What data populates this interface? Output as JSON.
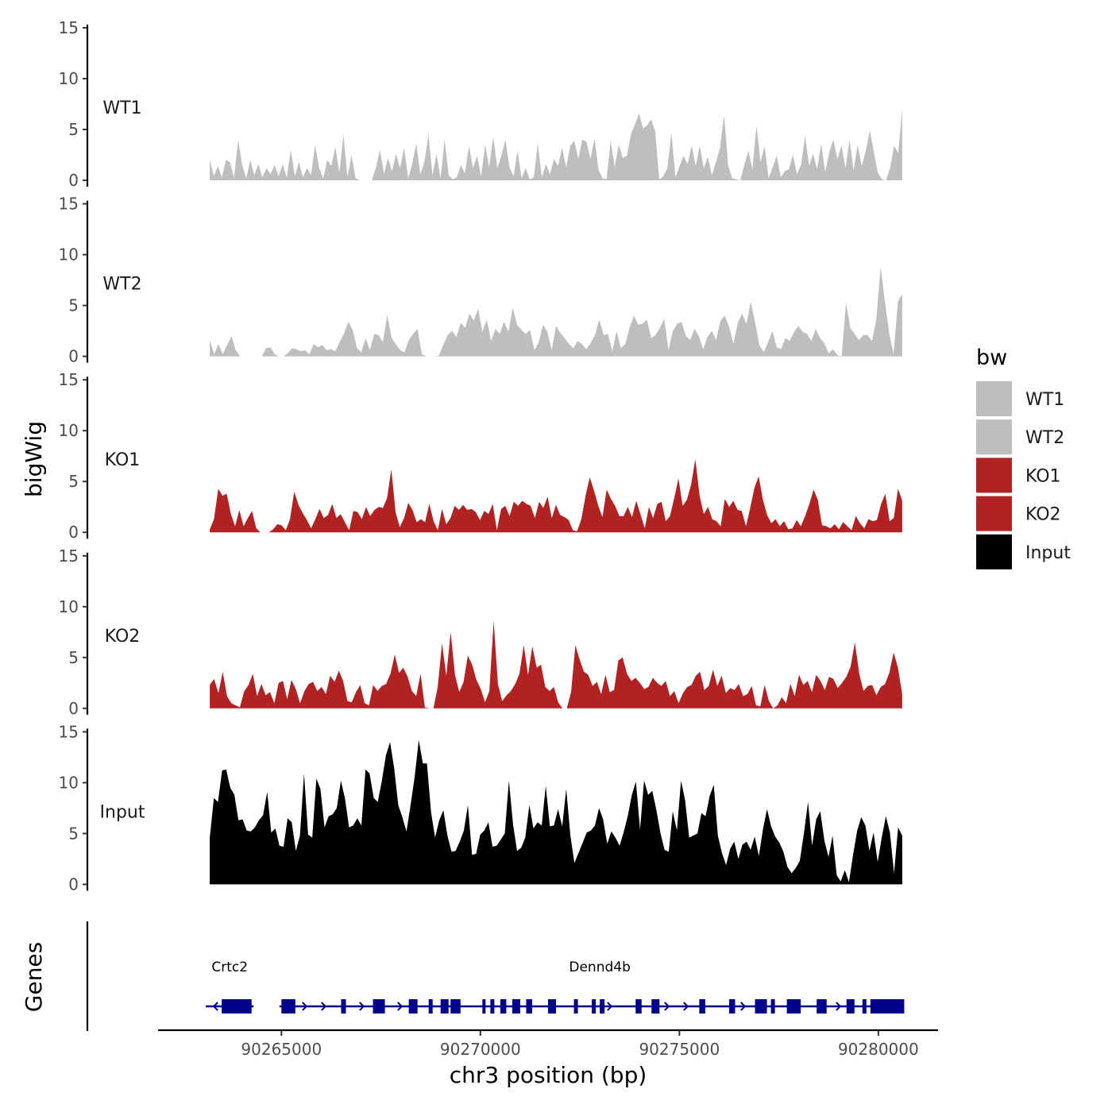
{
  "chart_data": {
    "type": "area",
    "title": "",
    "xlabel": "chr3 position (bp)",
    "ylabel": "bigWig",
    "genes_panel_label": "Genes",
    "xlim": [
      90261900,
      90281500
    ],
    "x_range": [
      90263200,
      90280600
    ],
    "x_ticks": [
      90265000,
      90270000,
      90275000,
      90280000
    ],
    "x_tick_labels": [
      "90265000",
      "90270000",
      "90275000",
      "90280000"
    ],
    "ylim": [
      0,
      15
    ],
    "y_ticks": [
      0,
      5,
      10,
      15
    ],
    "y_tick_labels": [
      "0",
      "5",
      "10",
      "15"
    ],
    "legend": {
      "title": "bw",
      "position": "right"
    },
    "series": [
      {
        "name": "WT1",
        "color": "#bebebe",
        "values": [
          2,
          0.4,
          1.4,
          0.3,
          2,
          1.8,
          0.2,
          4,
          1.5,
          0.2,
          2,
          0.5,
          1.6,
          0.3,
          1.2,
          0.6,
          1.5,
          0.4,
          1.6,
          0.3,
          3,
          0.4,
          1.8,
          0.3,
          1.2,
          0.5,
          3.5,
          1.2,
          0.2,
          2,
          1.4,
          3.3,
          0.7,
          4.5,
          0.3,
          2.5,
          0.2,
          0,
          0,
          0,
          0,
          1.2,
          3,
          0.6,
          2.2,
          0.9,
          2.6,
          1.2,
          3.2,
          0.2,
          1.6,
          3.6,
          0.6,
          1.8,
          4.5,
          0.5,
          2.6,
          0.2,
          4,
          0.5,
          0.1,
          0.3,
          1.5,
          0.7,
          3.4,
          1.2,
          2.4,
          0.4,
          3.5,
          1.3,
          4.3,
          1.2,
          2.4,
          4,
          1.3,
          0.4,
          2.9,
          0.2,
          1.2,
          0.1,
          0.3,
          3.6,
          0.3,
          1.6,
          0.6,
          2.1,
          1.4,
          3.2,
          1.3,
          3.4,
          3.9,
          2.1,
          4,
          3.8,
          2.1,
          4.1,
          1,
          0.2,
          0.1,
          3.9,
          1.3,
          3.5,
          2.2,
          2.4,
          4.5,
          5.5,
          6.6,
          5.1,
          5.4,
          6,
          4.8,
          0.1,
          0.4,
          1.2,
          4.7,
          0.3,
          1.4,
          2.4,
          1.6,
          3.4,
          1.4,
          3.4,
          1.2,
          2.3,
          0.5,
          1.8,
          3.2,
          6.4,
          1.5,
          0.2,
          0.1,
          0,
          1.5,
          2.9,
          1.1,
          5.4,
          1.8,
          3.4,
          0.2,
          1.3,
          2.4,
          0.3,
          0.9,
          1.1,
          2.5,
          0.6,
          1.5,
          4.4,
          1.4,
          2.6,
          1.1,
          3.6,
          0.8,
          2.8,
          4,
          2.1,
          3.4,
          1.2,
          4,
          1,
          3.5,
          1.4,
          2.9,
          4.9,
          2.8,
          0.7,
          0.1,
          0,
          1.2,
          3.4,
          2.7,
          7
        ]
      },
      {
        "name": "WT2",
        "color": "#bebebe",
        "values": [
          1.6,
          0.2,
          1.2,
          0.2,
          1.1,
          2,
          0.6,
          0,
          0,
          0,
          0,
          0,
          0,
          0.8,
          0.9,
          0.2,
          0,
          0,
          0.3,
          0.8,
          0.7,
          0.5,
          0.6,
          0.2,
          1.2,
          0.9,
          1.1,
          0.6,
          0.7,
          0.5,
          1.4,
          2.2,
          3.4,
          2.6,
          0.8,
          0.4,
          1.8,
          0.6,
          2.2,
          2.1,
          1.4,
          4.1,
          1.8,
          1.2,
          0.6,
          0.4,
          1.6,
          2.2,
          2.7,
          0.2,
          0,
          0,
          0,
          0.1,
          1.2,
          2.1,
          2.5,
          1.9,
          3.3,
          2.8,
          4.2,
          3.5,
          4.7,
          2.4,
          3.6,
          1.5,
          2.7,
          2.2,
          3.4,
          2.4,
          4.8,
          3.1,
          2.6,
          2.2,
          2.6,
          0.6,
          1.4,
          3.1,
          2.4,
          0.6,
          3,
          2.3,
          1.8,
          1.2,
          0.8,
          1.5,
          1.2,
          0.7,
          1.3,
          2.1,
          3.6,
          2.1,
          2.2,
          0.5,
          2.5,
          0.8,
          1.2,
          2.8,
          4,
          3.1,
          3.2,
          3.6,
          1.8,
          2.1,
          2.8,
          3.7,
          0.6,
          2.5,
          3.2,
          3.4,
          2,
          1.6,
          2.7,
          2,
          0.7,
          1.9,
          2.5,
          1.6,
          3.5,
          4,
          2.9,
          1.2,
          3.3,
          4.2,
          3.2,
          5.4,
          3.3,
          1.1,
          0.4,
          1.4,
          2.5,
          0.9,
          0.7,
          1.8,
          1.5,
          2.4,
          3,
          2.4,
          2.2,
          1.5,
          2.7,
          1.8,
          1.3,
          0.3,
          0.7,
          0.1,
          0,
          5.3,
          2.8,
          2.2,
          1.6,
          2.1,
          2.1,
          1.5,
          3.6,
          8.8,
          5.4,
          2.2,
          0.2,
          5.4,
          6.1
        ]
      },
      {
        "name": "KO1",
        "color": "#b22222",
        "values": [
          0.3,
          1.3,
          4.3,
          3.6,
          3.8,
          1.8,
          0.6,
          2.2,
          0.6,
          1.4,
          2.1,
          0.4,
          0,
          0,
          0,
          0.3,
          0.8,
          0.7,
          0.2,
          1.3,
          4,
          2.7,
          1.9,
          1.2,
          0.4,
          1.3,
          2.3,
          1.4,
          1.7,
          2.8,
          1.4,
          1.8,
          1,
          0.2,
          2.1,
          2,
          1.3,
          2.5,
          1.6,
          2.2,
          2.5,
          2.4,
          3.4,
          6.2,
          2,
          0.5,
          1.4,
          2.9,
          2.2,
          1,
          1.3,
          1,
          2.8,
          1.1,
          0.2,
          2.3,
          0.8,
          1.4,
          2.6,
          2.2,
          2.7,
          2.2,
          2.3,
          2,
          1.2,
          2.1,
          1.8,
          2.8,
          0.2,
          2.3,
          2.6,
          1.6,
          3,
          2.6,
          3.1,
          2.8,
          2.6,
          1.4,
          3,
          2.4,
          3.5,
          1.4,
          2.7,
          1.7,
          1.5,
          1.2,
          0.2,
          0.1,
          1.3,
          3.6,
          5.4,
          4.1,
          2.6,
          1.5,
          4.2,
          3.3,
          2.6,
          1.6,
          1.6,
          2.5,
          1.5,
          3.1,
          1.8,
          0.4,
          2.5,
          1.4,
          2.8,
          3,
          1.1,
          1.6,
          3.4,
          5.3,
          2.6,
          3.2,
          4.7,
          7.2,
          3.6,
          1.8,
          2.5,
          1.3,
          1.1,
          0.6,
          3.3,
          2.5,
          3.1,
          2.2,
          2.1,
          0.6,
          2.4,
          4.4,
          5.5,
          3.2,
          1.7,
          0.9,
          1.3,
          0.6,
          1.1,
          0.3,
          0.4,
          1.2,
          0.6,
          1.6,
          2.8,
          4.2,
          3.2,
          0.7,
          0.6,
          0.4,
          0.8,
          0.3,
          1,
          0.6,
          0.2,
          1.6,
          0.9,
          0.4,
          1.3,
          1.1,
          1.2,
          2.8,
          3.8,
          1.1,
          1.4,
          4.3,
          3.1
        ]
      },
      {
        "name": "KO2",
        "color": "#b22222",
        "values": [
          2.3,
          2.9,
          1.5,
          3.6,
          1.2,
          0.5,
          0.3,
          0.1,
          1.7,
          2.3,
          3.4,
          1.2,
          2.4,
          1.3,
          1.6,
          0.5,
          2.5,
          2.7,
          0.9,
          2.8,
          1.9,
          0.5,
          1.7,
          2.4,
          2.6,
          1.7,
          2.1,
          1.4,
          3.2,
          2.6,
          3.7,
          2.7,
          0.7,
          0.6,
          1.6,
          2.3,
          0.5,
          0.3,
          2.3,
          1.7,
          2.2,
          2.4,
          3.4,
          5.3,
          3.5,
          4,
          3.1,
          1.7,
          1.2,
          3.4,
          0.1,
          0,
          0,
          2.1,
          6.4,
          3.2,
          7.5,
          3.3,
          1.6,
          2.6,
          5.2,
          4.3,
          2.8,
          1.9,
          0.6,
          1.7,
          8.6,
          2.4,
          0.7,
          1.3,
          1.7,
          2.4,
          3.4,
          6.2,
          3.3,
          6.1,
          4,
          4.3,
          2.1,
          1.7,
          2.1,
          0.6,
          0,
          0,
          1.6,
          6.2,
          4.8,
          3.6,
          3.3,
          2.2,
          2.6,
          1.4,
          3.3,
          1.6,
          1.8,
          4.7,
          5,
          3.4,
          2.7,
          3,
          2.5,
          1.9,
          2.1,
          3,
          2.5,
          2.2,
          2.7,
          1.2,
          1.7,
          0.5,
          1.5,
          2.1,
          2.3,
          3.2,
          3.6,
          1.8,
          2.2,
          3.8,
          2.2,
          3.2,
          1.5,
          2,
          1.8,
          2.4,
          1.2,
          1.4,
          2.2,
          0.3,
          0.2,
          2.3,
          0.7,
          0,
          0.3,
          1.1,
          0.5,
          2.4,
          1.2,
          3.3,
          2.3,
          2.7,
          1.6,
          3.3,
          2.7,
          1.8,
          3.1,
          2.9,
          2,
          2.5,
          3.1,
          4.1,
          6.5,
          3.4,
          1.7,
          2.2,
          2.3,
          1.3,
          2.1,
          2.4,
          3.5,
          5.5,
          4,
          1.4
        ]
      },
      {
        "name": "Input",
        "color": "#000000",
        "values": [
          4.6,
          8.5,
          8.1,
          11.2,
          11.3,
          9.5,
          8.8,
          6.3,
          6.4,
          5.3,
          5.2,
          5.6,
          6.3,
          6.8,
          9.1,
          5.1,
          5.5,
          3.8,
          3.7,
          6.5,
          6.1,
          3.3,
          4.8,
          10.9,
          4.9,
          4.6,
          10.4,
          9.4,
          5.6,
          6.7,
          6.9,
          7.5,
          10.2,
          8.4,
          5.6,
          5.8,
          6.5,
          5.8,
          11.3,
          10.9,
          8.5,
          8.1,
          10.2,
          12.7,
          14,
          11.4,
          7.8,
          6.6,
          5.2,
          7.8,
          10.6,
          14.2,
          11.9,
          11.9,
          7.1,
          4.6,
          6.3,
          7.3,
          4.8,
          3.2,
          3.3,
          4.2,
          5.3,
          7.8,
          2.9,
          3,
          4.9,
          5.3,
          6.1,
          3.7,
          3.8,
          4.4,
          5,
          10.2,
          5.9,
          3.3,
          3.6,
          4.6,
          7.8,
          5.5,
          6.1,
          5.8,
          9.7,
          5.7,
          5.8,
          7.4,
          5.7,
          9.4,
          4.8,
          2.1,
          3.1,
          4.1,
          5.1,
          5.3,
          5.8,
          7.5,
          6.4,
          4,
          5.2,
          4.6,
          3.8,
          5.1,
          6.7,
          8.8,
          10.1,
          5.4,
          10.2,
          8.8,
          9.2,
          7.3,
          5,
          3.4,
          3.2,
          7.2,
          5.3,
          10.2,
          8.3,
          4.6,
          4.8,
          5,
          7,
          6.7,
          8.7,
          9.8,
          4.8,
          3.1,
          1.9,
          3.5,
          4.2,
          2.5,
          3.9,
          4.2,
          3.4,
          4.7,
          2.8,
          5.4,
          7.4,
          5.7,
          4.7,
          4.1,
          3.2,
          1.7,
          1.1,
          1.6,
          2.3,
          5,
          8.1,
          3.8,
          6.4,
          7.2,
          4.3,
          2.7,
          4.8,
          0.9,
          0.3,
          1.4,
          0.2,
          2.9,
          5.3,
          6.6,
          5.8,
          3.3,
          5.1,
          2.2,
          4.6,
          6.7,
          5.1,
          1.1,
          5.6,
          4.8
        ]
      }
    ],
    "gene_labels": [
      {
        "name": "Crtc2",
        "position": 90263700
      },
      {
        "name": "Dennd4b",
        "position": 90273000
      }
    ],
    "genes": [
      {
        "name": "Crtc2",
        "strand": "-",
        "start": 90263100,
        "end": 90264300,
        "exons": [
          [
            90263500,
            90264250
          ]
        ]
      },
      {
        "name": "Dennd4b",
        "strand": "+",
        "start": 90264950,
        "end": 90280600,
        "exons": [
          [
            90265000,
            90265350
          ],
          [
            90266500,
            90266620
          ],
          [
            90267300,
            90267600
          ],
          [
            90268200,
            90268420
          ],
          [
            90268700,
            90268800
          ],
          [
            90269000,
            90269200
          ],
          [
            90269250,
            90269500
          ],
          [
            90270050,
            90270120
          ],
          [
            90270250,
            90270350
          ],
          [
            90270500,
            90270650
          ],
          [
            90270800,
            90271000
          ],
          [
            90271150,
            90271300
          ],
          [
            90271700,
            90271900
          ],
          [
            90272350,
            90272450
          ],
          [
            90272800,
            90272900
          ],
          [
            90273000,
            90273120
          ],
          [
            90273900,
            90274050
          ],
          [
            90274300,
            90274500
          ],
          [
            90275500,
            90275650
          ],
          [
            90276250,
            90276400
          ],
          [
            90276900,
            90277200
          ],
          [
            90277300,
            90277400
          ],
          [
            90277700,
            90278050
          ],
          [
            90278450,
            90278700
          ],
          [
            90279200,
            90279400
          ],
          [
            90279600,
            90279700
          ],
          [
            90279800,
            90280650
          ]
        ]
      }
    ]
  }
}
